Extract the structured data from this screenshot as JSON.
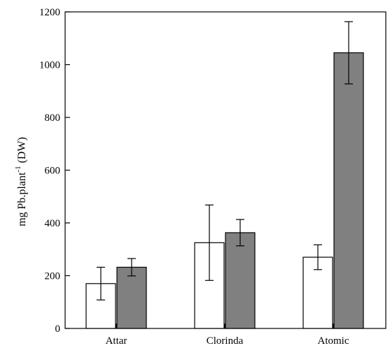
{
  "chart_data": {
    "type": "bar",
    "ylabel_main": "mg  Pb.plant",
    "ylabel_sup": "-1",
    "ylabel_tail": " (DW)",
    "categories": [
      "Attar",
      "Clorinda",
      "Atomic"
    ],
    "series": [
      {
        "fill": "#ffffff",
        "values": [
          170,
          325,
          270
        ],
        "errors": [
          62,
          143,
          47
        ]
      },
      {
        "fill": "#808080",
        "values": [
          232,
          363,
          1045
        ],
        "errors": [
          33,
          50,
          118
        ]
      }
    ],
    "ylim": [
      0,
      1200
    ],
    "yticks": [
      0,
      200,
      400,
      600,
      800,
      1000,
      1200
    ],
    "grid": false,
    "legend": "none"
  }
}
